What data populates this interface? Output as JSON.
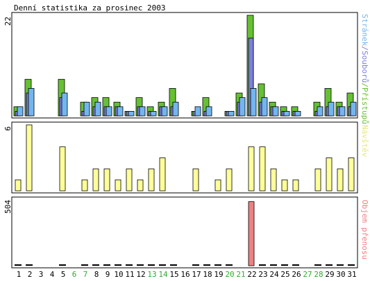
{
  "chart_data": [
    {
      "type": "bar",
      "title": "Denní statistika za prosinec 2003",
      "ylabel": "Stránek/Souborů/Přístupů",
      "ylabel_parts": [
        "Stránek",
        "/",
        "Souborů",
        "/",
        "Přístupů"
      ],
      "y_tick_label": "22",
      "ylim": [
        0,
        22
      ],
      "series": [
        {
          "name": "Přístupů",
          "color": "#66c033",
          "values": [
            2,
            8,
            0,
            0,
            8,
            0,
            3,
            4,
            4,
            3,
            1,
            4,
            2,
            3,
            6,
            0,
            1,
            4,
            0,
            1,
            5,
            22,
            7,
            3,
            2,
            2,
            0,
            3,
            6,
            3,
            5
          ]
        },
        {
          "name": "Souborů",
          "color": "#7d7fdf",
          "values": [
            1,
            5,
            0,
            0,
            4,
            0,
            1,
            2,
            2,
            2,
            1,
            2,
            1,
            2,
            2,
            0,
            1,
            1,
            0,
            1,
            3,
            17,
            3,
            2,
            1,
            1,
            0,
            1,
            2,
            2,
            2
          ]
        },
        {
          "name": "Stránek",
          "color": "#73b6ef",
          "values": [
            2,
            6,
            0,
            0,
            5,
            0,
            3,
            3,
            2,
            2,
            1,
            2,
            1,
            2,
            3,
            0,
            2,
            2,
            0,
            1,
            4,
            6,
            4,
            2,
            1,
            1,
            0,
            2,
            3,
            2,
            3
          ]
        }
      ]
    },
    {
      "type": "bar",
      "ylabel": "Návštěv",
      "y_tick_label": "6",
      "ylim": [
        0,
        6
      ],
      "series": [
        {
          "name": "Návštěv",
          "color": "#ffff99",
          "values": [
            1,
            6,
            0,
            0,
            4,
            0,
            1,
            2,
            2,
            1,
            2,
            1,
            2,
            3,
            0,
            0,
            2,
            0,
            1,
            2,
            0,
            4,
            4,
            2,
            1,
            1,
            0,
            2,
            3,
            2,
            3
          ]
        }
      ]
    },
    {
      "type": "bar",
      "ylabel": "Objem přenosu",
      "y_tick_label": "504",
      "ylim": [
        0,
        504
      ],
      "series": [
        {
          "name": "Objem přenosu",
          "color": "#f08080",
          "values": [
            6,
            6,
            0,
            0,
            6,
            0,
            6,
            6,
            6,
            6,
            6,
            6,
            6,
            6,
            6,
            0,
            6,
            6,
            6,
            6,
            0,
            490,
            6,
            6,
            6,
            6,
            0,
            6,
            6,
            6,
            6
          ]
        }
      ]
    }
  ],
  "x_categories": [
    "1",
    "2",
    "3",
    "4",
    "5",
    "6",
    "7",
    "8",
    "9",
    "10",
    "11",
    "12",
    "13",
    "14",
    "15",
    "16",
    "17",
    "18",
    "19",
    "20",
    "21",
    "22",
    "23",
    "24",
    "25",
    "26",
    "27",
    "28",
    "29",
    "30",
    "31"
  ],
  "weekend_days": [
    "6",
    "7",
    "13",
    "14",
    "20",
    "21",
    "27",
    "28"
  ],
  "colors": {
    "weekday": "#000000",
    "weekend": "#33aa33",
    "background": "#ffffff",
    "frame": "#000000"
  }
}
